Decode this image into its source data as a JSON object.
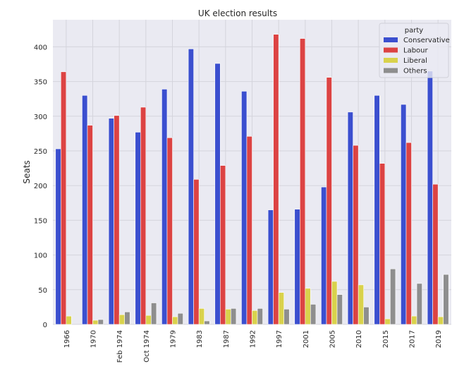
{
  "chart_data": {
    "type": "bar",
    "title": "UK election results",
    "xlabel": "",
    "ylabel": "Seats",
    "ylim": [
      0,
      439
    ],
    "yticks": [
      0,
      50,
      100,
      150,
      200,
      250,
      300,
      350,
      400
    ],
    "grid": true,
    "legend": {
      "title": "party",
      "placement": "top-right"
    },
    "categories": [
      "1966",
      "1970",
      "Feb 1974",
      "Oct 1974",
      "1979",
      "1983",
      "1987",
      "1992",
      "1997",
      "2001",
      "2005",
      "2010",
      "2015",
      "2017",
      "2019"
    ],
    "series": [
      {
        "name": "Conservative",
        "color": "#3b4fcf",
        "values": [
          253,
          330,
          297,
          277,
          339,
          397,
          376,
          336,
          165,
          166,
          198,
          306,
          330,
          317,
          365
        ]
      },
      {
        "name": "Labour",
        "color": "#dc4343",
        "values": [
          364,
          287,
          301,
          313,
          269,
          209,
          229,
          271,
          418,
          412,
          356,
          258,
          232,
          262,
          202
        ]
      },
      {
        "name": "Liberal",
        "color": "#d9d24c",
        "values": [
          12,
          6,
          14,
          13,
          11,
          23,
          22,
          20,
          46,
          52,
          62,
          57,
          8,
          12,
          11
        ]
      },
      {
        "name": "Others",
        "color": "#8e8e8e",
        "values": [
          0,
          7,
          18,
          31,
          16,
          5,
          23,
          23,
          22,
          29,
          43,
          25,
          80,
          59,
          72
        ]
      }
    ]
  }
}
